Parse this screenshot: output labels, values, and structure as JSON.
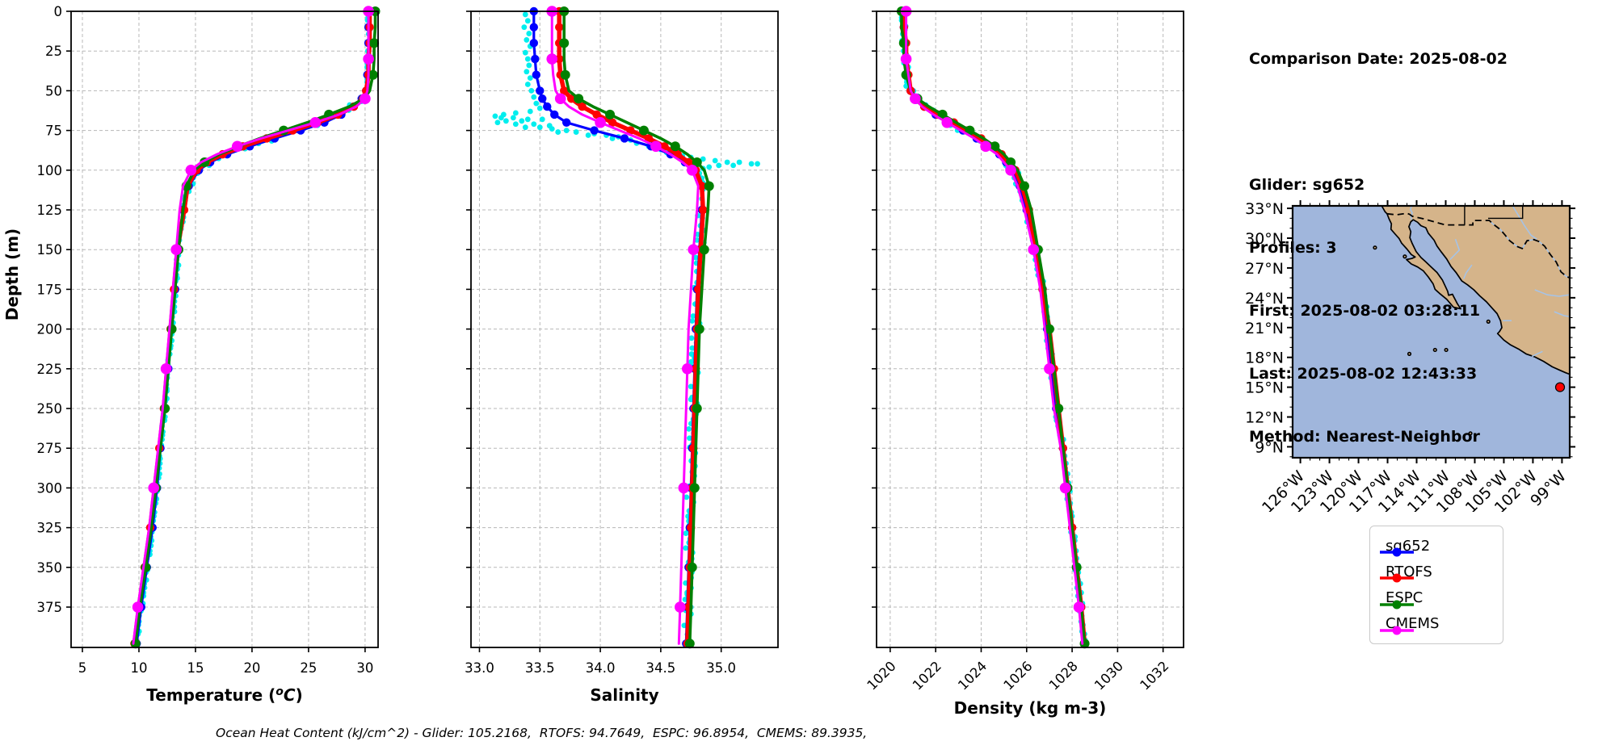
{
  "info_panel": {
    "comparison_date": "Comparison Date: 2025-08-02",
    "glider": "Glider: sg652",
    "profiles": "Profiles: 3",
    "first": "First: 2025-08-02 03:28:11",
    "last": "Last: 2025-08-02 12:43:33",
    "method": "Method: Nearest-Neighbor"
  },
  "footer": {
    "text": "Ocean Heat Content (kJ/cm^2) - Glider: 105.2168,  RTOFS: 94.7649,  ESPC: 96.8954,  CMEMS: 89.3935,"
  },
  "legend": {
    "items": [
      {
        "label": "sg652",
        "color": "#0000ff"
      },
      {
        "label": "RTOFS",
        "color": "#ff0000"
      },
      {
        "label": "ESPC",
        "color": "#008000"
      },
      {
        "label": "CMEMS",
        "color": "#ff00ff"
      }
    ]
  },
  "chart_data": [
    {
      "id": "temperature",
      "type": "line",
      "xlabel": "Temperature (°C)",
      "xlabel_parts": [
        "Temperature (",
        "o",
        "C",
        ")"
      ],
      "ylabel": "Depth (m)",
      "xticks": [
        5,
        10,
        15,
        20,
        25,
        30
      ],
      "xlim": [
        4.0,
        31.15
      ],
      "ylim": [
        0,
        400
      ],
      "depth_ticks": [
        0,
        25,
        50,
        75,
        100,
        125,
        150,
        175,
        200,
        225,
        250,
        275,
        300,
        325,
        350,
        375
      ],
      "depths": [
        0,
        10,
        20,
        30,
        40,
        50,
        55,
        60,
        65,
        70,
        75,
        80,
        85,
        90,
        95,
        100,
        110,
        125,
        150,
        175,
        200,
        225,
        250,
        275,
        300,
        325,
        350,
        375,
        398
      ],
      "series": [
        {
          "name": "sg652",
          "color": "#0000ff",
          "width": 3.2,
          "marker_r": 5.2,
          "marker_every": 1,
          "values": [
            30.3,
            30.3,
            30.3,
            30.3,
            30.2,
            30.1,
            29.7,
            29.0,
            27.9,
            26.4,
            24.3,
            22.0,
            19.8,
            17.8,
            16.3,
            15.3,
            14.4,
            13.9,
            13.5,
            13.2,
            12.9,
            12.6,
            12.3,
            11.9,
            11.6,
            11.2,
            10.7,
            10.2,
            9.8
          ]
        },
        {
          "name": "RTOFS",
          "color": "#ff0000",
          "width": 5.5,
          "marker_r": 5.2,
          "marker_every": 1,
          "values": [
            30.4,
            30.4,
            30.4,
            30.3,
            30.3,
            30.1,
            29.8,
            29.0,
            27.6,
            25.8,
            23.6,
            21.3,
            19.2,
            17.4,
            16.0,
            15.1,
            14.3,
            14.0,
            13.4,
            13.1,
            12.8,
            12.5,
            12.2,
            11.8,
            11.4,
            11.0,
            10.5,
            10.0,
            9.6
          ]
        },
        {
          "name": "ESPC",
          "color": "#008000",
          "width": 3.6,
          "marker_r": 6.0,
          "marker_every": 2,
          "values": [
            30.9,
            30.9,
            30.8,
            30.8,
            30.7,
            30.4,
            29.9,
            28.6,
            26.8,
            24.9,
            22.8,
            20.7,
            18.8,
            17.1,
            15.8,
            14.9,
            14.2,
            13.9,
            13.5,
            13.2,
            12.9,
            12.6,
            12.3,
            11.9,
            11.5,
            11.1,
            10.6,
            10.1,
            9.7
          ]
        },
        {
          "name": "CMEMS",
          "color": "#ff00ff",
          "width": 3.0,
          "marker_r": 6.8,
          "marker_every": 3,
          "values": [
            30.3,
            30.3,
            30.3,
            30.3,
            30.3,
            30.2,
            30.0,
            29.2,
            27.7,
            25.6,
            23.2,
            20.8,
            18.7,
            16.9,
            15.5,
            14.6,
            13.9,
            13.6,
            13.3,
            13.0,
            12.7,
            12.4,
            12.1,
            11.7,
            11.3,
            10.9,
            10.4,
            9.9,
            9.5
          ]
        }
      ],
      "raw_scatter": {
        "name": "glider-raw",
        "color": "#00eeee",
        "r": 3.4,
        "follow": "sg652",
        "from": 0,
        "to": 396,
        "step": 3,
        "amp": 0.12,
        "amp_mid": 0.38
      }
    },
    {
      "id": "salinity",
      "type": "line",
      "xlabel": "Salinity",
      "xticks": [
        33.0,
        33.5,
        34.0,
        34.5,
        35.0
      ],
      "xlim": [
        32.93,
        35.47
      ],
      "ylim": [
        0,
        400
      ],
      "depth_ticks": [
        0,
        25,
        50,
        75,
        100,
        125,
        150,
        175,
        200,
        225,
        250,
        275,
        300,
        325,
        350,
        375
      ],
      "depths": [
        0,
        10,
        20,
        30,
        40,
        50,
        55,
        60,
        65,
        70,
        75,
        80,
        85,
        90,
        95,
        100,
        110,
        125,
        150,
        175,
        200,
        225,
        250,
        275,
        300,
        325,
        350,
        375,
        398
      ],
      "series": [
        {
          "name": "sg652",
          "color": "#0000ff",
          "width": 3.2,
          "marker_r": 5.2,
          "marker_every": 1,
          "values": [
            33.45,
            33.45,
            33.45,
            33.46,
            33.47,
            33.5,
            33.52,
            33.56,
            33.62,
            33.72,
            33.95,
            34.2,
            34.42,
            34.58,
            34.7,
            34.78,
            34.84,
            34.84,
            34.82,
            34.8,
            34.79,
            34.78,
            34.77,
            34.76,
            34.75,
            34.74,
            34.73,
            34.72,
            34.71
          ]
        },
        {
          "name": "RTOFS",
          "color": "#ff0000",
          "width": 5.5,
          "marker_r": 5.2,
          "marker_every": 1,
          "values": [
            33.66,
            33.66,
            33.66,
            33.66,
            33.67,
            33.7,
            33.76,
            33.85,
            33.97,
            34.1,
            34.25,
            34.4,
            34.53,
            34.64,
            34.73,
            34.79,
            34.84,
            34.85,
            34.83,
            34.81,
            34.8,
            34.79,
            34.78,
            34.77,
            34.76,
            34.75,
            34.74,
            34.73,
            34.72
          ]
        },
        {
          "name": "ESPC",
          "color": "#008000",
          "width": 3.6,
          "marker_r": 6.0,
          "marker_every": 2,
          "values": [
            33.7,
            33.7,
            33.7,
            33.7,
            33.71,
            33.74,
            33.82,
            33.94,
            34.08,
            34.22,
            34.36,
            34.5,
            34.62,
            34.72,
            34.8,
            34.86,
            34.9,
            34.89,
            34.86,
            34.84,
            34.82,
            34.81,
            34.8,
            34.79,
            34.78,
            34.77,
            34.76,
            34.75,
            34.74
          ]
        },
        {
          "name": "CMEMS",
          "color": "#ff00ff",
          "width": 3.0,
          "marker_r": 6.8,
          "marker_every": 3,
          "values": [
            33.6,
            33.6,
            33.6,
            33.6,
            33.61,
            33.63,
            33.67,
            33.74,
            33.85,
            34.0,
            34.16,
            34.32,
            34.46,
            34.58,
            34.68,
            34.76,
            34.81,
            34.8,
            34.77,
            34.75,
            34.73,
            34.72,
            34.71,
            34.7,
            34.69,
            34.68,
            34.67,
            34.66,
            34.65
          ]
        }
      ],
      "raw_scatter": {
        "name": "glider-raw",
        "color": "#00eeee",
        "r": 3.4,
        "follow": "sg652",
        "from": 128,
        "to": 396,
        "step": 3,
        "amp": 0.035,
        "amp_mid": 0.035,
        "points": [
          [
            33.38,
            2
          ],
          [
            33.4,
            6
          ],
          [
            33.37,
            10
          ],
          [
            33.41,
            14
          ],
          [
            33.39,
            18
          ],
          [
            33.42,
            22
          ],
          [
            33.38,
            26
          ],
          [
            33.4,
            30
          ],
          [
            33.41,
            34
          ],
          [
            33.39,
            38
          ],
          [
            33.42,
            42
          ],
          [
            33.4,
            46
          ],
          [
            33.43,
            50
          ],
          [
            33.45,
            54
          ],
          [
            33.47,
            58
          ],
          [
            33.5,
            61
          ],
          [
            33.42,
            63
          ],
          [
            33.3,
            64
          ],
          [
            33.2,
            65
          ],
          [
            33.13,
            66
          ],
          [
            33.18,
            67
          ],
          [
            33.28,
            67
          ],
          [
            33.4,
            68
          ],
          [
            33.52,
            68
          ],
          [
            33.35,
            69
          ],
          [
            33.22,
            69
          ],
          [
            33.15,
            70
          ],
          [
            33.3,
            71
          ],
          [
            33.45,
            71
          ],
          [
            33.58,
            72
          ],
          [
            33.5,
            73
          ],
          [
            33.38,
            73
          ],
          [
            33.6,
            74
          ],
          [
            33.72,
            75
          ],
          [
            33.65,
            76
          ],
          [
            33.8,
            76
          ],
          [
            33.95,
            77
          ],
          [
            34.05,
            78
          ],
          [
            33.9,
            78
          ],
          [
            34.15,
            79
          ],
          [
            34.1,
            80
          ],
          [
            34.25,
            81
          ],
          [
            34.3,
            83
          ],
          [
            34.4,
            85
          ],
          [
            34.5,
            87
          ],
          [
            34.55,
            89
          ],
          [
            34.6,
            90
          ],
          [
            34.68,
            91
          ],
          [
            34.75,
            92
          ],
          [
            34.85,
            93
          ],
          [
            34.95,
            94
          ],
          [
            35.05,
            95
          ],
          [
            35.15,
            95
          ],
          [
            35.25,
            96
          ],
          [
            35.3,
            96
          ],
          [
            35.1,
            97
          ],
          [
            34.98,
            97
          ],
          [
            34.9,
            98
          ],
          [
            34.85,
            99
          ],
          [
            34.8,
            100
          ],
          [
            34.82,
            102
          ],
          [
            34.84,
            105
          ],
          [
            34.85,
            108
          ],
          [
            34.85,
            112
          ],
          [
            34.84,
            118
          ],
          [
            34.83,
            125
          ]
        ]
      }
    },
    {
      "id": "density",
      "type": "line",
      "xlabel": "Density (kg m-3)",
      "xticks": [
        1020,
        1022,
        1024,
        1026,
        1028,
        1030,
        1032
      ],
      "xlim": [
        1019.4,
        1032.9
      ],
      "ylim": [
        0,
        400
      ],
      "depth_ticks": [
        0,
        25,
        50,
        75,
        100,
        125,
        150,
        175,
        200,
        225,
        250,
        275,
        300,
        325,
        350,
        375
      ],
      "depths": [
        0,
        10,
        20,
        30,
        40,
        50,
        55,
        60,
        65,
        70,
        75,
        80,
        85,
        90,
        95,
        100,
        110,
        125,
        150,
        175,
        200,
        225,
        250,
        275,
        300,
        325,
        350,
        375,
        398
      ],
      "series": [
        {
          "name": "sg652",
          "color": "#0000ff",
          "width": 3.2,
          "marker_r": 5.2,
          "marker_every": 1,
          "values": [
            1020.6,
            1020.6,
            1020.6,
            1020.7,
            1020.7,
            1020.9,
            1021.1,
            1021.5,
            1022.0,
            1022.6,
            1023.2,
            1023.8,
            1024.3,
            1024.8,
            1025.1,
            1025.4,
            1025.7,
            1026.0,
            1026.4,
            1026.7,
            1026.9,
            1027.1,
            1027.3,
            1027.6,
            1027.8,
            1028.0,
            1028.2,
            1028.4,
            1028.55
          ]
        },
        {
          "name": "RTOFS",
          "color": "#ff0000",
          "width": 5.5,
          "marker_r": 5.2,
          "marker_every": 1,
          "values": [
            1020.6,
            1020.6,
            1020.7,
            1020.7,
            1020.8,
            1020.9,
            1021.1,
            1021.5,
            1022.1,
            1022.8,
            1023.4,
            1024.0,
            1024.5,
            1024.9,
            1025.2,
            1025.5,
            1025.8,
            1026.1,
            1026.4,
            1026.7,
            1027.0,
            1027.2,
            1027.4,
            1027.6,
            1027.8,
            1028.0,
            1028.2,
            1028.4,
            1028.55
          ]
        },
        {
          "name": "ESPC",
          "color": "#008000",
          "width": 3.6,
          "marker_r": 6.0,
          "marker_every": 2,
          "values": [
            1020.5,
            1020.5,
            1020.6,
            1020.6,
            1020.7,
            1020.9,
            1021.2,
            1021.7,
            1022.3,
            1022.9,
            1023.5,
            1024.1,
            1024.6,
            1025.0,
            1025.3,
            1025.6,
            1025.9,
            1026.2,
            1026.5,
            1026.8,
            1027.0,
            1027.2,
            1027.4,
            1027.6,
            1027.8,
            1028.0,
            1028.2,
            1028.4,
            1028.55
          ]
        },
        {
          "name": "CMEMS",
          "color": "#ff00ff",
          "width": 3.0,
          "marker_r": 6.8,
          "marker_every": 3,
          "values": [
            1020.7,
            1020.7,
            1020.7,
            1020.7,
            1020.8,
            1020.9,
            1021.1,
            1021.4,
            1021.9,
            1022.5,
            1023.1,
            1023.7,
            1024.2,
            1024.7,
            1025.0,
            1025.3,
            1025.6,
            1025.9,
            1026.3,
            1026.6,
            1026.8,
            1027.0,
            1027.2,
            1027.5,
            1027.7,
            1027.9,
            1028.1,
            1028.3,
            1028.45
          ]
        }
      ],
      "raw_scatter": {
        "name": "glider-raw",
        "color": "#00eeee",
        "r": 3.4,
        "follow": "sg652",
        "from": 0,
        "to": 396,
        "step": 3,
        "amp": 0.1,
        "amp_mid": 0.25
      }
    },
    {
      "id": "map",
      "type": "map",
      "lat_tick_labels": [
        "33°N",
        "30°N",
        "27°N",
        "24°N",
        "21°N",
        "18°N",
        "15°N",
        "12°N",
        "9°N"
      ],
      "lon_tick_labels": [
        "126°W",
        "123°W",
        "120°W",
        "117°W",
        "114°W",
        "111°W",
        "108°W",
        "105°W",
        "102°W",
        "99°W"
      ],
      "marker": {
        "lat": 15.0,
        "lon_w": 99.2,
        "color": "#ff0000"
      },
      "land_color": "#d5b48a",
      "ocean_color": "#a0b6dc",
      "river_color": "#a6c3e6"
    }
  ]
}
